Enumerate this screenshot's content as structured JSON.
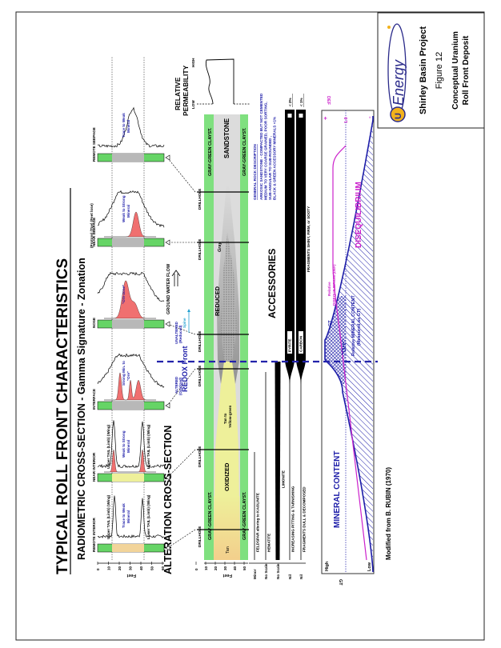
{
  "title_block": {
    "logo": "UREnergy",
    "project": "Shirley Basin Project",
    "figure": "Figure 12",
    "caption_1": "Conceptual Uranium",
    "caption_2": "Roll Front Deposit"
  },
  "main_title": "TYPICAL ROLL FRONT CHARACTERISTICS",
  "radiometric": {
    "title": "RADIOMETRIC CROSS-SECTION - Gamma Signature - Zonation",
    "depth_label": "Feet",
    "depth_ticks": [
      "0",
      "10",
      "20",
      "30",
      "40",
      "50",
      "60"
    ],
    "top_note": "(Protore)  (Toe)  (Feet lose)",
    "logs": [
      {
        "name": "REMOTE INTERIOR",
        "annotation_1": "Trace to Weak",
        "annotation_2": "Mineral",
        "upper": "Upper TAIL (Limb) (Wing)",
        "lower": "Lower TAIL (Limb) (Wing)"
      },
      {
        "name": "NEAR INTERIOR",
        "annotation_1": "Weak to Strong",
        "annotation_2": "Mineral",
        "upper": "Upper TAIL (Limb) (Wing)",
        "lower": "Lower TAIL (Limb) (Wing)"
      },
      {
        "name": "INTERFACE",
        "annotation_1": "Strong Min. to",
        "annotation_2": "\"Ore\""
      },
      {
        "name": "NOSE",
        "annotation_1": "\"Ore-zone\"",
        "annotation_2": ""
      },
      {
        "name": "NEAR SEEPAGE",
        "annotation_1": "Weak to Strong",
        "annotation_2": "Mineral"
      },
      {
        "name": "REMOTE SEEPAGE",
        "annotation_1": "Trace to Weak",
        "annotation_2": "Mineral"
      }
    ],
    "ground_water_flow": "GROUND WATER FLOW"
  },
  "alteration": {
    "title": "ALTERATION CROSS-SECTION",
    "depth_label": "Feet",
    "depth_ticks": [
      "0",
      "10",
      "20",
      "30",
      "40",
      "50"
    ],
    "drillhole_label": "DRILLHOLE",
    "upper_clay": "GRAY-GREEN CLAYST.",
    "lower_clay": "GRAY-GREEN CLAYST.",
    "sandstone": "SANDSTONE",
    "oxidized": "OXIDIZED",
    "tan": "Tan",
    "tan_yellow_1": "Tan to",
    "tan_yellow_2": "Yellow-green",
    "reduced": "REDUCED",
    "gray": "Gray",
    "altered_1": "ALTERED",
    "altered_2": "(Oxidized)",
    "unaltered_1": "UNALTERED",
    "unaltered_2": "(Reduced)",
    "spine": "Spine",
    "redox_front": "REDOX  Front"
  },
  "permeability": {
    "title_1": "RELATIVE",
    "title_2": "PERMEABILITY",
    "low": "LOW",
    "high": "HIGH"
  },
  "rock_description": {
    "title": "GENERAL ROCK DESCRIPTION",
    "lines": [
      "ARKOSIC  SANDSTONE - COMPACTED BUT NOT CEMENTED",
      "MEDIUM TO VERY COARSE GRAINED, POOR SORTING,",
      "SUB-ANGULAR TO SUB-ROUNDED ,",
      "BLACK & GREEN ACCESSORY MINERALS <1%"
    ]
  },
  "accessories": {
    "title": "ACCESSORIES",
    "rows": [
      {
        "scale": "Minor",
        "label": "FELDSPAR altering to KAOLINITE"
      },
      {
        "scale": "No Scale",
        "label": "HEMATITE"
      },
      {
        "scale": "No Scale",
        "label": "LIMONITE"
      },
      {
        "scale": "Nil",
        "label": "INCREASING PITTING & TARNISHING",
        "bar": "PYRITE",
        "max": "< 2%"
      },
      {
        "scale": "Nil",
        "label": "FRAGMENTS DULL & DECOMPOSED",
        "bar": "CARBON",
        "max": "< 1%",
        "note": "FRAGMENTS SHINY, FIRM, or SOOTY"
      }
    ]
  },
  "mineral_graph": {
    "high": "High",
    "low": "Low",
    "gt_axis": "GT",
    "def_axis": "DEF",
    "plus": "+",
    "one": "1.0",
    "minus": "-",
    "mineral_content": "MINERAL CONTENT",
    "disequilibrium": "DISEQUILIBRIUM",
    "gt_label": "GT",
    "def_label_1": "Relative",
    "def_label_2": "DISEQUILIBRIUM (DEF)",
    "ore": "\"Ore\"",
    "relative_1": "Relative  MINERAL CONTENT",
    "relative_2": "(Measured as GT)",
    "colors": {
      "gt": "#1c1ca8",
      "def": "#cc22cc"
    }
  },
  "credit": "Modified from B. RUBIN (1970)"
}
